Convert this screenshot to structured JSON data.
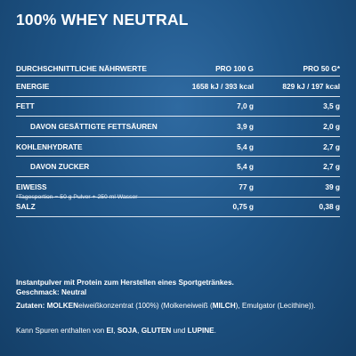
{
  "title": "100% WHEY NEUTRAL",
  "table": {
    "header": {
      "label": "DURCHSCHNITTLICHE NÄHRWERTE",
      "col1": "PRO 100 G",
      "col2": "PRO 50 G*"
    },
    "rows": [
      {
        "label": "ENERGIE",
        "v100": "1658 kJ / 393 kcal",
        "v50": "829 kJ / 197 kcal",
        "sub": false
      },
      {
        "label": "FETT",
        "v100": "7,0 g",
        "v50": "3,5 g",
        "sub": false
      },
      {
        "label": "DAVON GESÄTTIGTE FETTSÄUREN",
        "v100": "3,9 g",
        "v50": "2,0 g",
        "sub": true
      },
      {
        "label": "KOHLENHYDRATE",
        "v100": "5,4 g",
        "v50": "2,7 g",
        "sub": false
      },
      {
        "label": "DAVON ZUCKER",
        "v100": "5,4 g",
        "v50": "2,7 g",
        "sub": true
      },
      {
        "label": "EIWEISS",
        "v100": "77 g",
        "v50": "39 g",
        "sub": false
      },
      {
        "label": "SALZ",
        "v100": "0,75 g",
        "v50": "0,38 g",
        "sub": false
      }
    ]
  },
  "footnote": "*Tagesportion = 50 g Pulver + 250 ml Wasser",
  "description": {
    "line1": "Instantpulver mit Protein zum Herstellen eines Sportgetränkes.",
    "line2": "Geschmack: Neutral"
  },
  "ingredients": {
    "label": "Zutaten:",
    "parts": [
      "MOLKEN",
      "eiweißkonzentrat (100%) (Molkeneiweiß (",
      "MILCH",
      "), Emulgator (Lecithine))."
    ]
  },
  "allergens": {
    "parts": [
      "Kann Spuren enthalten von ",
      "EI",
      ", ",
      "SOJA",
      ", ",
      "GLUTEN",
      " und ",
      "LUPINE",
      "."
    ]
  }
}
